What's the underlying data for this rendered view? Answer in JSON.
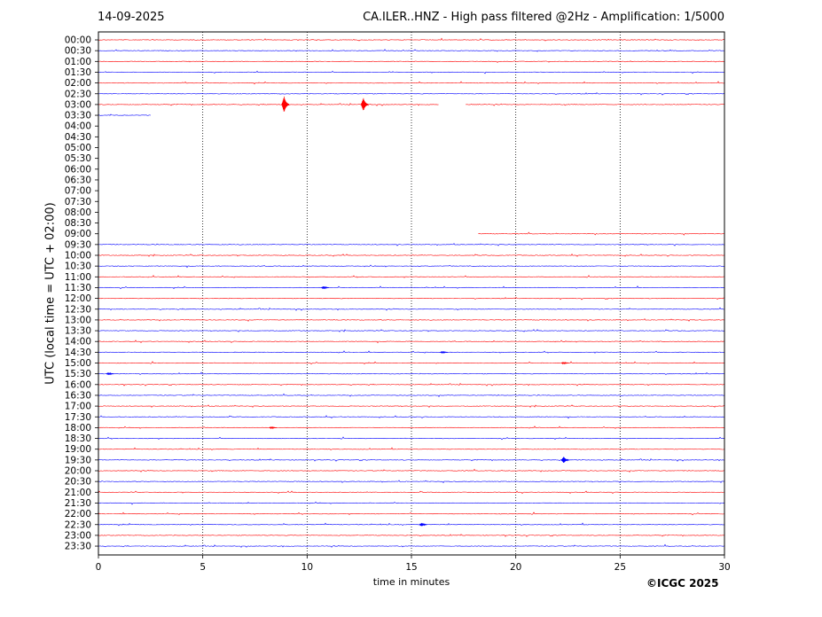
{
  "header": {
    "date": "14-09-2025",
    "title": "CA.ILER..HNZ - High pass filtered @2Hz - Amplification: 1/5000"
  },
  "footer": {
    "copyright": "©ICGC 2025"
  },
  "chart_data": {
    "type": "line",
    "subtype": "helicorder",
    "xlabel": "time in minutes",
    "ylabel": "UTC (local time = UTC + 02:00)",
    "xlim": [
      0,
      30
    ],
    "xticks": [
      0,
      5,
      10,
      15,
      20,
      25,
      30
    ],
    "vertical_dotted_gridlines_at": [
      5,
      10,
      15,
      20,
      25
    ],
    "trace_colors": [
      "#ff0000",
      "#0000ff"
    ],
    "rows": [
      "00:00",
      "00:30",
      "01:00",
      "01:30",
      "02:00",
      "02:30",
      "03:00",
      "03:30",
      "04:00",
      "04:30",
      "05:00",
      "05:30",
      "06:00",
      "06:30",
      "07:00",
      "07:30",
      "08:00",
      "08:30",
      "09:00",
      "09:30",
      "10:00",
      "10:30",
      "11:00",
      "11:30",
      "12:00",
      "12:30",
      "13:00",
      "13:30",
      "14:00",
      "14:30",
      "15:00",
      "15:30",
      "16:00",
      "16:30",
      "17:00",
      "17:30",
      "18:00",
      "18:30",
      "19:00",
      "19:30",
      "20:00",
      "20:30",
      "21:00",
      "21:30",
      "22:00",
      "22:30",
      "23:00",
      "23:30"
    ],
    "data_segments": [
      {
        "row": "00:00",
        "start_min": 0,
        "end_min": 30
      },
      {
        "row": "00:30",
        "start_min": 0,
        "end_min": 30
      },
      {
        "row": "01:00",
        "start_min": 0,
        "end_min": 30
      },
      {
        "row": "01:30",
        "start_min": 0,
        "end_min": 30
      },
      {
        "row": "02:00",
        "start_min": 0,
        "end_min": 30
      },
      {
        "row": "02:30",
        "start_min": 0,
        "end_min": 30
      },
      {
        "row": "03:00",
        "start_min": 0,
        "end_min": 16.3
      },
      {
        "row": "03:00",
        "start_min": 17.6,
        "end_min": 30
      },
      {
        "row": "03:30",
        "start_min": 0,
        "end_min": 2.5
      },
      {
        "row": "09:00",
        "start_min": 18.2,
        "end_min": 30
      },
      {
        "row": "09:30",
        "start_min": 0,
        "end_min": 30
      },
      {
        "row": "10:00",
        "start_min": 0,
        "end_min": 30
      },
      {
        "row": "10:30",
        "start_min": 0,
        "end_min": 30
      },
      {
        "row": "11:00",
        "start_min": 0,
        "end_min": 30
      },
      {
        "row": "11:30",
        "start_min": 0,
        "end_min": 30
      },
      {
        "row": "12:00",
        "start_min": 0,
        "end_min": 30
      },
      {
        "row": "12:30",
        "start_min": 0,
        "end_min": 30
      },
      {
        "row": "13:00",
        "start_min": 0,
        "end_min": 30
      },
      {
        "row": "13:30",
        "start_min": 0,
        "end_min": 30
      },
      {
        "row": "14:00",
        "start_min": 0,
        "end_min": 30
      },
      {
        "row": "14:30",
        "start_min": 0,
        "end_min": 30
      },
      {
        "row": "15:00",
        "start_min": 0,
        "end_min": 30
      },
      {
        "row": "15:30",
        "start_min": 0,
        "end_min": 30
      },
      {
        "row": "16:00",
        "start_min": 0,
        "end_min": 30
      },
      {
        "row": "16:30",
        "start_min": 0,
        "end_min": 30
      },
      {
        "row": "17:00",
        "start_min": 0,
        "end_min": 30
      },
      {
        "row": "17:30",
        "start_min": 0,
        "end_min": 30
      },
      {
        "row": "18:00",
        "start_min": 0,
        "end_min": 30
      },
      {
        "row": "18:30",
        "start_min": 0,
        "end_min": 30
      },
      {
        "row": "19:00",
        "start_min": 0,
        "end_min": 30
      },
      {
        "row": "19:30",
        "start_min": 0,
        "end_min": 30
      },
      {
        "row": "20:00",
        "start_min": 0,
        "end_min": 30
      },
      {
        "row": "20:30",
        "start_min": 0,
        "end_min": 30
      },
      {
        "row": "21:00",
        "start_min": 0,
        "end_min": 30
      },
      {
        "row": "21:30",
        "start_min": 0,
        "end_min": 30
      },
      {
        "row": "22:00",
        "start_min": 0,
        "end_min": 30
      },
      {
        "row": "22:30",
        "start_min": 0,
        "end_min": 30
      },
      {
        "row": "23:00",
        "start_min": 0,
        "end_min": 30
      },
      {
        "row": "23:30",
        "start_min": 0,
        "end_min": 30
      }
    ],
    "events": [
      {
        "row": "03:00",
        "minute": 8.9,
        "amplitude": 0.75
      },
      {
        "row": "03:00",
        "minute": 12.7,
        "amplitude": 0.6
      },
      {
        "row": "19:30",
        "minute": 22.3,
        "amplitude": 0.3
      },
      {
        "row": "22:30",
        "minute": 15.5,
        "amplitude": 0.15
      },
      {
        "row": "11:30",
        "minute": 10.8,
        "amplitude": 0.12
      },
      {
        "row": "15:30",
        "minute": 0.5,
        "amplitude": 0.1
      },
      {
        "row": "18:00",
        "minute": 8.3,
        "amplitude": 0.08
      },
      {
        "row": "14:30",
        "minute": 16.5,
        "amplitude": 0.08
      },
      {
        "row": "15:00",
        "minute": 22.3,
        "amplitude": 0.08
      }
    ]
  }
}
